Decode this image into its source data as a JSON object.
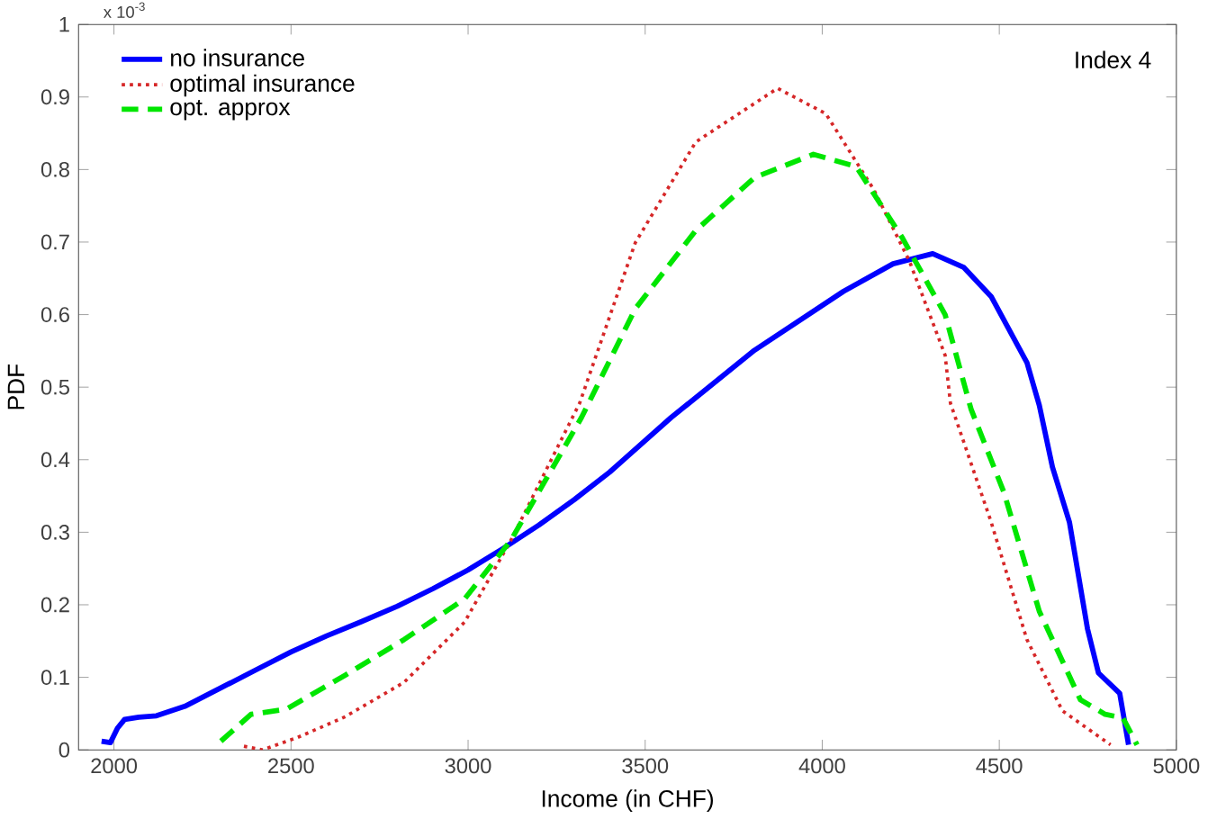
{
  "chart_data": {
    "type": "line",
    "xlabel": "Income (in CHF)",
    "ylabel": "PDF",
    "annotations": [
      "x 10$^{-3}$",
      "Index 4"
    ],
    "xlim": [
      1900,
      5000
    ],
    "ylim": [
      0,
      1
    ],
    "xticks": [
      2000,
      2500,
      3000,
      3500,
      4000,
      4500,
      5000
    ],
    "yticks": [
      0,
      0.1,
      0.2,
      0.3,
      0.4,
      0.5,
      0.6,
      0.7,
      0.8,
      0.9,
      1
    ],
    "legend": "top left",
    "grid": false,
    "series": [
      {
        "name": "no insurance",
        "color": "#0000ff",
        "line_style": "solid",
        "x": [
          1965,
          1990,
          2010,
          2030,
          2070,
          2120,
          2200,
          2300,
          2400,
          2500,
          2600,
          2700,
          2800,
          2900,
          3000,
          3100,
          3200,
          3300,
          3400,
          3573,
          3809,
          4060,
          4200,
          4312,
          4400,
          4477,
          4578,
          4613,
          4650,
          4698,
          4749,
          4780,
          4840,
          4865
        ],
        "values": [
          0.012,
          0.01,
          0.03,
          0.042,
          0.045,
          0.047,
          0.06,
          0.085,
          0.11,
          0.135,
          0.157,
          0.177,
          0.198,
          0.222,
          0.248,
          0.278,
          0.31,
          0.345,
          0.383,
          0.458,
          0.551,
          0.632,
          0.67,
          0.684,
          0.665,
          0.625,
          0.534,
          0.475,
          0.39,
          0.314,
          0.167,
          0.106,
          0.078,
          0.007
        ]
      },
      {
        "name": "optimal insurance",
        "color": "#d62728",
        "line_style": "dotted",
        "x": [
          2367,
          2420,
          2518,
          2650,
          2819,
          2990,
          3121,
          3315,
          3472,
          3643,
          3874,
          4010,
          4146,
          4246,
          4347,
          4362,
          4477,
          4578,
          4678,
          4814
        ],
        "values": [
          0.005,
          0.0,
          0.017,
          0.045,
          0.093,
          0.176,
          0.289,
          0.478,
          0.699,
          0.838,
          0.912,
          0.877,
          0.772,
          0.674,
          0.544,
          0.478,
          0.314,
          0.152,
          0.054,
          0.007
        ]
      },
      {
        "name": "opt. approx",
        "color": "#00e600",
        "line_style": "dashed",
        "x": [
          2302,
          2387,
          2487,
          2653,
          2819,
          2990,
          3121,
          3320,
          3472,
          3643,
          3809,
          3975,
          4096,
          4226,
          4347,
          4420,
          4513,
          4613,
          4729,
          4799,
          4849,
          4889
        ],
        "values": [
          0.012,
          0.049,
          0.056,
          0.103,
          0.152,
          0.208,
          0.289,
          0.458,
          0.608,
          0.716,
          0.789,
          0.821,
          0.804,
          0.706,
          0.6,
          0.47,
          0.355,
          0.191,
          0.069,
          0.049,
          0.044,
          0.007
        ]
      }
    ]
  }
}
